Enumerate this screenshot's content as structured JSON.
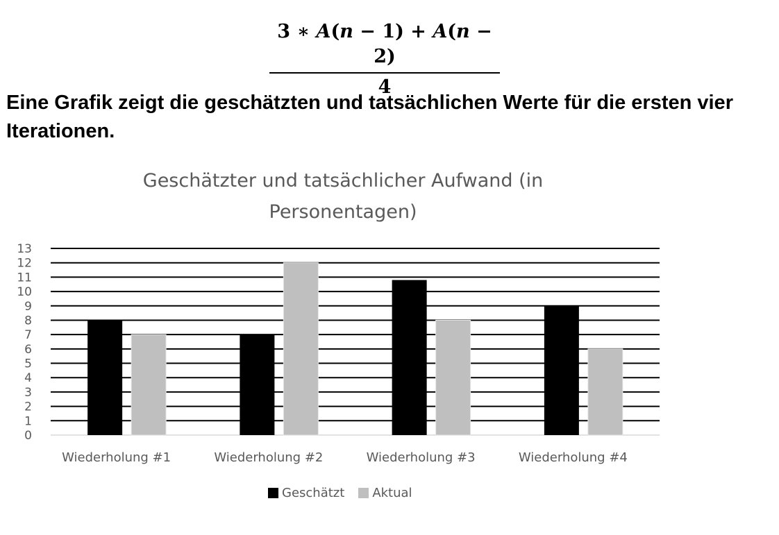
{
  "formula": {
    "numerator_parts": [
      "3 ∗ ",
      "A",
      "(",
      "n",
      " − 1) + ",
      "A",
      "(",
      "n",
      " − 2)"
    ],
    "denominator": "4"
  },
  "intro_text": "Eine Grafik zeigt die geschätzten und tatsächlichen Werte für die ersten vier Iterationen.",
  "chart_data": {
    "type": "bar",
    "title": "Geschätzter und tatsächlicher Aufwand (in Personentagen)",
    "xlabel": "",
    "ylabel": "",
    "categories": [
      "Wiederholung #1",
      "Wiederholung #2",
      "Wiederholung #3",
      "Wiederholung #4"
    ],
    "series": [
      {
        "name": "Geschätzt",
        "values": [
          8,
          7,
          10.8,
          9
        ],
        "color": "#000000"
      },
      {
        "name": "Aktual",
        "values": [
          7,
          12,
          8,
          6
        ],
        "color": "#bfbfbf"
      }
    ],
    "ylim": [
      0,
      13
    ],
    "yticks": [
      0,
      1,
      2,
      3,
      4,
      5,
      6,
      7,
      8,
      9,
      10,
      11,
      12,
      13
    ],
    "grid": true,
    "legend_position": "bottom"
  }
}
